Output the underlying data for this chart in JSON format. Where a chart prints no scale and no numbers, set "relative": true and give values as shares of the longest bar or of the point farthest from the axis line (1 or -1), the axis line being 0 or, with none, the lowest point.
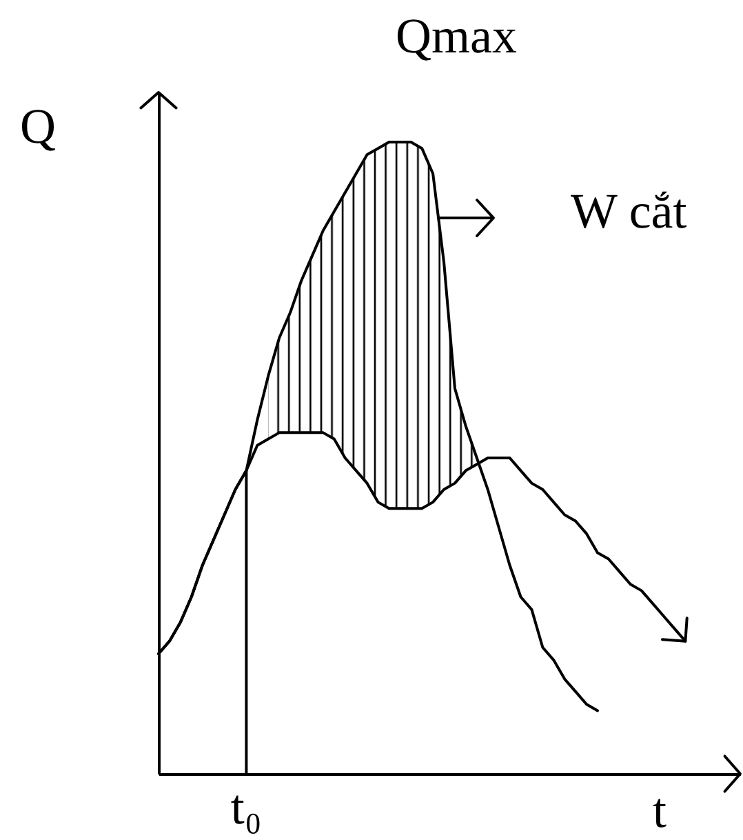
{
  "chart_data": {
    "type": "line",
    "relative": true,
    "xlabel": "t",
    "ylabel": "Q",
    "annotations": [
      "Qmax",
      "W cắt",
      "t₀"
    ],
    "categories": [
      null,
      null,
      null,
      null,
      null,
      null,
      null,
      null,
      null,
      null,
      null,
      null,
      null,
      null,
      null,
      null,
      null,
      null,
      null,
      null,
      null,
      null,
      null,
      null,
      null,
      null,
      null,
      null,
      null,
      null,
      null,
      null,
      null,
      null,
      null,
      null,
      null,
      null,
      null,
      null,
      null,
      null,
      null,
      null,
      null,
      null,
      null,
      null,
      null,
      null,
      null,
      null,
      null,
      null
    ],
    "series": [
      {
        "color": "#000000",
        "values": [
          0.19,
          0.21,
          0.24,
          0.28,
          0.33,
          0.37,
          0.41,
          0.45,
          0.48,
          0.56,
          0.63,
          0.69,
          0.73,
          0.78,
          0.82,
          0.86,
          0.89,
          0.92,
          0.95,
          0.98,
          0.99,
          1.0,
          1.0,
          1.0,
          0.99,
          0.95,
          0.81,
          0.61,
          0.55,
          0.5,
          0.45,
          0.39,
          0.33,
          0.28,
          0.26,
          0.2,
          0.18,
          0.15,
          0.13,
          0.11,
          0.1,
          null,
          null,
          null,
          null,
          null,
          null,
          null,
          null,
          null,
          null,
          null,
          null,
          null
        ],
        "upper": [
          null,
          null,
          null,
          null,
          null,
          null,
          null,
          null,
          null,
          null,
          0.63,
          0.69,
          0.73,
          0.78,
          0.82,
          0.86,
          0.89,
          0.92,
          0.95,
          0.98,
          0.99,
          1.0,
          1.0,
          1.0,
          0.99,
          0.95,
          0.81,
          0.61,
          0.55,
          0.5,
          null,
          null,
          null,
          null,
          null,
          null,
          null,
          null,
          null,
          null,
          null,
          null,
          null,
          null,
          null,
          null,
          null,
          null,
          null,
          null,
          null,
          null,
          null,
          null
        ],
        "lower": [
          null,
          null,
          null,
          null,
          null,
          null,
          null,
          null,
          null,
          null,
          0.53,
          0.54,
          0.54,
          0.54,
          0.54,
          0.54,
          0.53,
          0.5,
          0.48,
          0.46,
          0.43,
          0.42,
          0.42,
          0.42,
          0.42,
          0.43,
          0.45,
          0.46,
          0.48,
          0.49,
          null,
          null,
          null,
          null,
          null,
          null,
          null,
          null,
          null,
          null,
          null,
          null,
          null,
          null,
          null,
          null,
          null,
          null,
          null,
          null,
          null,
          null,
          null,
          null
        ]
      },
      {
        "color": "#000000",
        "values": [
          0.19,
          0.21,
          0.24,
          0.28,
          0.33,
          0.37,
          0.41,
          0.45,
          0.48,
          0.52,
          0.53,
          0.54,
          0.54,
          0.54,
          0.54,
          0.54,
          0.53,
          0.5,
          0.48,
          0.46,
          0.43,
          0.42,
          0.42,
          0.42,
          0.42,
          0.43,
          0.45,
          0.46,
          0.48,
          0.49,
          0.5,
          0.5,
          0.5,
          0.48,
          0.46,
          0.45,
          0.43,
          0.41,
          0.4,
          0.38,
          0.35,
          0.34,
          0.32,
          0.3,
          0.29,
          0.27,
          0.25,
          0.23,
          0.21,
          null,
          null,
          null,
          null,
          null
        ]
      }
    ]
  }
}
